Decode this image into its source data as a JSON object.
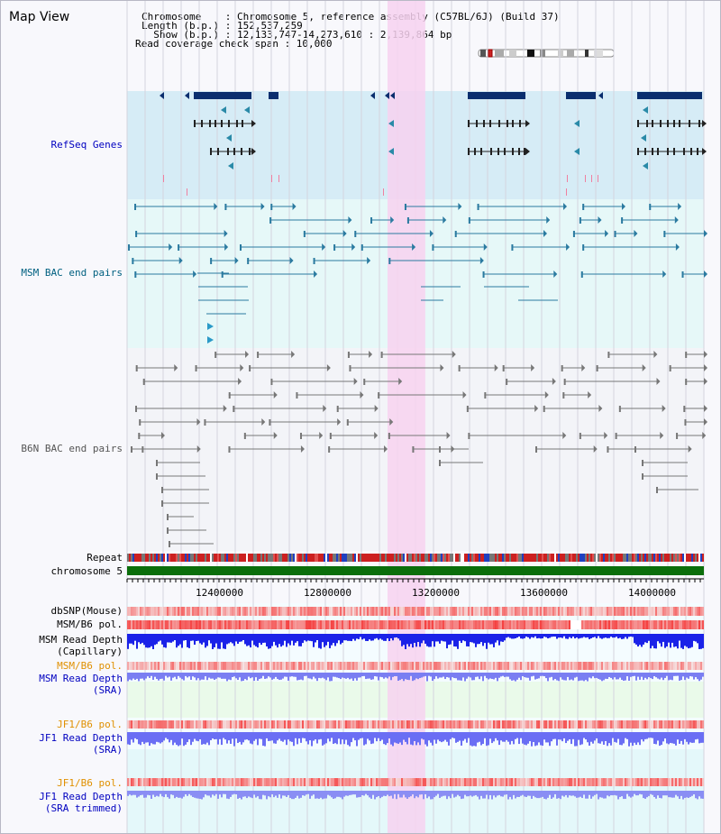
{
  "header": {
    "map_title": "Map View",
    "chromosome_line": "Chromosome    : Chromosome 5, reference assembly (C57BL/6J) (Build 37)",
    "length_line": "Length (b.p.) : 152,537,259",
    "show_line": "  Show (b.p.) : 12,133,747-14,273,610 : 2,139,864 bp",
    "coverage_line": "Read coverage check span : 10,000"
  },
  "view": {
    "start": 12133747,
    "end": 14273610,
    "highlight": [
      13100000,
      13240000
    ]
  },
  "tracks": {
    "refseq": "RefSeq Genes",
    "msm_bac": "MSM BAC end pairs",
    "b6n_bac": "B6N BAC end pairs",
    "repeat": "Repeat",
    "chromosome": "chromosome 5",
    "dbsnp": "dbSNP(Mouse)",
    "msm_b6_pol_1": "MSM/B6 pol.",
    "msm_depth_cap_1": "MSM Read Depth",
    "msm_depth_cap_2": "(Capillary)",
    "msm_b6_pol_2": "MSM/B6 pol.",
    "msm_depth_sra_1": "MSM Read Depth",
    "msm_depth_sra_2": "(SRA)",
    "jf1_pol_1": "JF1/B6 pol.",
    "jf1_depth_sra_1": "JF1 Read Depth",
    "jf1_depth_sra_2": "(SRA)",
    "jf1_pol_2": "JF1/B6 pol.",
    "jf1_depth_trim_1": "JF1 Read Depth",
    "jf1_depth_trim_2": "(SRA trimmed)"
  },
  "axis": {
    "ticks": [
      "12400000",
      "12800000",
      "13200000",
      "13600000",
      "14000000"
    ]
  },
  "colors": {
    "gene": "#0a2e6e",
    "refseq_bg": "#d6ecf6",
    "msm_bg": "#e6f8f8",
    "b6n_bg": "#f3f4f8",
    "highlight": "#f7d2f0",
    "msm_bac": "#2a7aa0",
    "b6n_bac": "#777777",
    "chromosome": "#0b6e0b",
    "depth": "#1a22e8",
    "depth_light": "#7a7ef2",
    "pol": "#f05050",
    "label_blue": "#0000c0",
    "label_teal": "#006080",
    "label_orange": "#e09000"
  }
}
